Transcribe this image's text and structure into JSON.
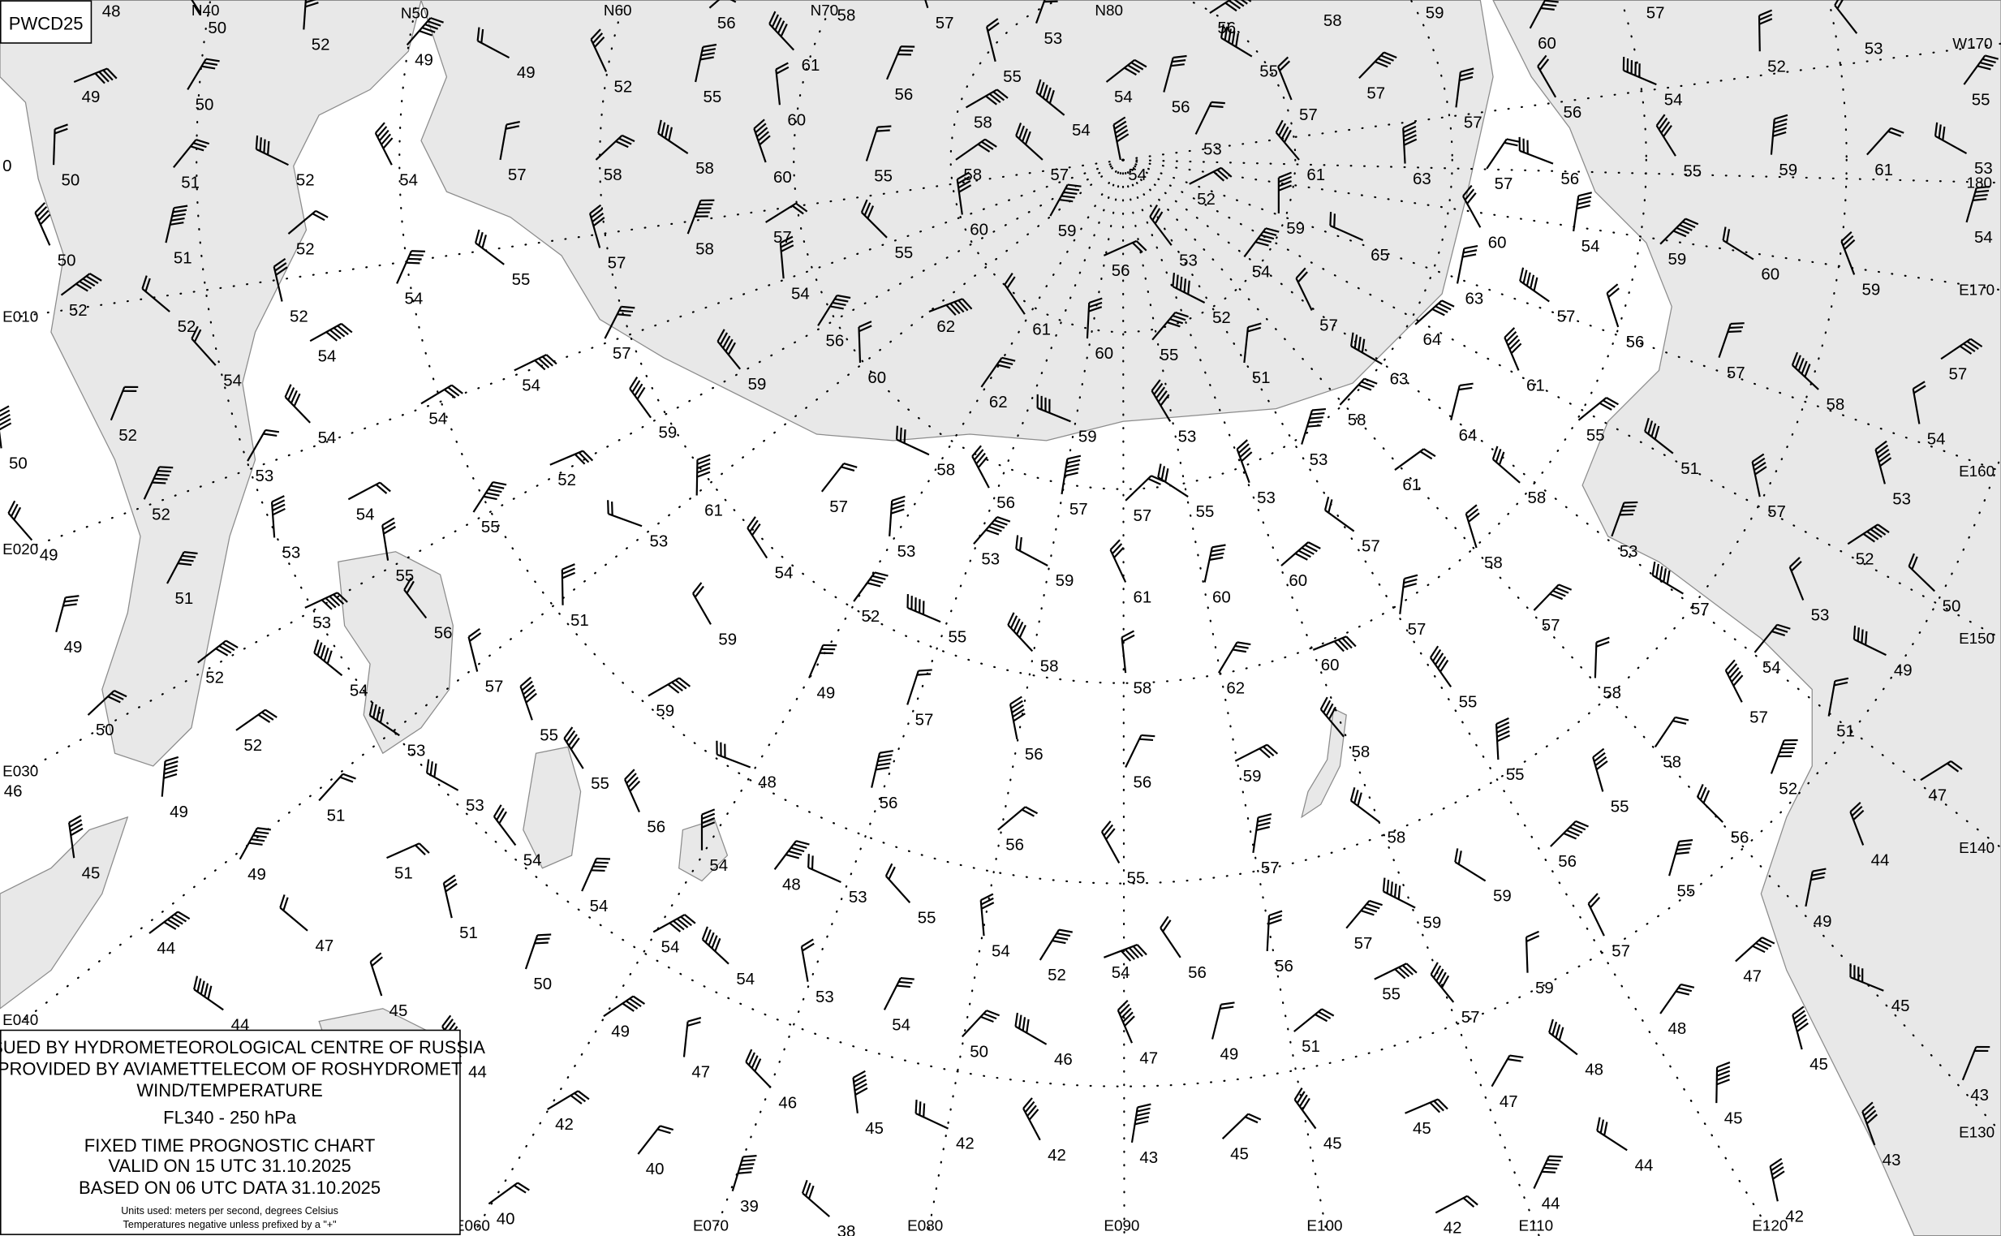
{
  "chart_code": "PWCD25",
  "legend": {
    "line1": "ISSUED BY HYDROMETEOROLOGICAL CENTRE OF RUSSIA",
    "line2": "PROVIDED BY AVIAMETTELECOM OF ROSHYDROMET",
    "line3": "WIND/TEMPERATURE",
    "level": "FL340 - 250 hPa",
    "chart_type": "FIXED TIME PROGNOSTIC CHART",
    "valid": "VALID ON 15 UTC 31.10.2025",
    "based": "BASED ON 06 UTC DATA 31.10.2025",
    "units1": "Units used: meters per second, degrees Celsius",
    "units2": "Temperatures negative unless prefixed by a \"+\""
  },
  "colors": {
    "land": "#ffffff",
    "water": "#e8e8e8",
    "coast": "#8c8c8c",
    "ink": "#000000"
  },
  "grid_labels": [
    "N40",
    "N50",
    "N60",
    "N70",
    "N80",
    "E010",
    "E020",
    "E030",
    "E040",
    "E060",
    "E070",
    "E080",
    "E090",
    "E100",
    "E110",
    "E120",
    "E130",
    "E140",
    "E150",
    "E160",
    "E170",
    "180",
    "W170"
  ],
  "temperature_labels": [
    "48",
    "50",
    "52",
    "49",
    "49",
    "52",
    "55",
    "56",
    "58",
    "57",
    "53",
    "56",
    "58",
    "59",
    "60",
    "57",
    "53",
    "52",
    "55",
    "54",
    "56",
    "57",
    "57",
    "55",
    "57",
    "56",
    "54",
    "54",
    "55",
    "56",
    "58",
    "61",
    "60",
    "50",
    "49",
    "0",
    "50",
    "51",
    "52",
    "54",
    "57",
    "58",
    "58",
    "60",
    "55",
    "58",
    "57",
    "54",
    "53",
    "52",
    "61",
    "63",
    "57",
    "56",
    "55",
    "59",
    "61",
    "53",
    "50",
    "51",
    "52",
    "55",
    "57",
    "58",
    "57",
    "55",
    "60",
    "59",
    "56",
    "53",
    "59",
    "54",
    "65",
    "60",
    "54",
    "59",
    "60",
    "59",
    "54",
    "52",
    "52",
    "52",
    "54",
    "54",
    "54",
    "54",
    "56",
    "62",
    "61",
    "60",
    "55",
    "52",
    "57",
    "63",
    "64",
    "57",
    "56",
    "57",
    "57",
    "58",
    "54",
    "57",
    "54",
    "59",
    "60",
    "62",
    "59",
    "53",
    "51",
    "58",
    "63",
    "61",
    "64",
    "55",
    "51",
    "53",
    "52",
    "54",
    "54",
    "50",
    "53",
    "52",
    "59",
    "61",
    "57",
    "58",
    "56",
    "57",
    "57",
    "55",
    "53",
    "53",
    "61",
    "58",
    "57",
    "52",
    "54",
    "49",
    "53",
    "55",
    "53",
    "54",
    "53",
    "53",
    "59",
    "61",
    "60",
    "60",
    "57",
    "58",
    "53",
    "52",
    "50",
    "55",
    "51",
    "53",
    "56",
    "51",
    "52",
    "55",
    "59",
    "57",
    "57",
    "57",
    "53",
    "49",
    "52",
    "54",
    "57",
    "49",
    "59",
    "58",
    "58",
    "62",
    "60",
    "55",
    "58",
    "54",
    "49",
    "57",
    "51",
    "50",
    "53",
    "55",
    "57",
    "52",
    "46",
    "56",
    "56",
    "59",
    "58",
    "55",
    "58",
    "48",
    "55",
    "49",
    "51",
    "53",
    "56",
    "56",
    "56",
    "58",
    "55",
    "52",
    "47",
    "56",
    "45",
    "49",
    "51",
    "54",
    "54",
    "48",
    "53",
    "55",
    "57",
    "56",
    "59",
    "44",
    "55",
    "44",
    "47",
    "51",
    "54",
    "54",
    "55",
    "54",
    "52",
    "54",
    "56",
    "56",
    "57",
    "59",
    "57",
    "49",
    "47",
    "44",
    "45",
    "50",
    "49",
    "54",
    "53",
    "54",
    "55",
    "57",
    "59",
    "48",
    "45",
    "44",
    "47",
    "50",
    "46",
    "47",
    "49",
    "51",
    "48",
    "45",
    "43",
    "42",
    "46",
    "45",
    "47",
    "45",
    "45",
    "45",
    "40",
    "42",
    "42",
    "43",
    "45",
    "44",
    "43",
    "39",
    "40",
    "38",
    "42",
    "44",
    "42"
  ]
}
